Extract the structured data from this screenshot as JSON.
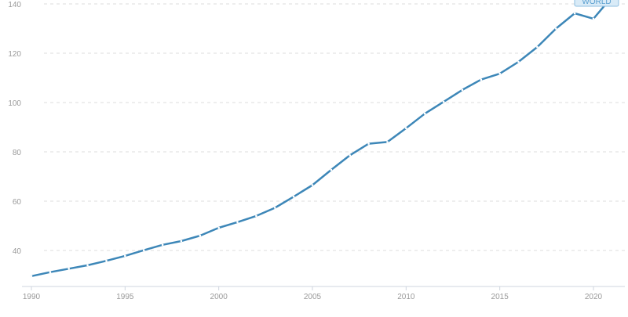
{
  "chart_data": {
    "type": "line",
    "title": "",
    "xlabel": "",
    "ylabel": "",
    "xlim": [
      1990,
      2021
    ],
    "ylim": [
      26,
      140
    ],
    "x_ticks": [
      1990,
      1995,
      2000,
      2005,
      2010,
      2015,
      2020
    ],
    "y_ticks": [
      40,
      60,
      80,
      100,
      120,
      140
    ],
    "grid": "horizontal dashed",
    "legend": "none",
    "series_tag": "WORLD",
    "colors": {
      "line": "#3d87b8",
      "grid": "#dcdcdc",
      "tick_text": "#9a9a9a",
      "tag_fill": "#d9ebf7",
      "tag_text": "#5a9fcf"
    },
    "series": [
      {
        "x": [
          1990,
          1991,
          1992,
          1993,
          1994,
          1995,
          1996,
          1997,
          1998,
          1999,
          2000,
          2001,
          2002,
          2003,
          2004,
          2005,
          2006,
          2007,
          2008,
          2009,
          2010,
          2011,
          2012,
          2013,
          2014,
          2015,
          2016,
          2017,
          2018,
          2019,
          2020,
          2021
        ],
        "values": [
          29.6,
          31.2,
          32.6,
          34.0,
          35.8,
          37.8,
          40.1,
          42.3,
          43.8,
          46.0,
          49.2,
          51.5,
          54.0,
          57.3,
          61.8,
          66.5,
          72.7,
          78.6,
          83.3,
          84.0,
          89.6,
          95.5,
          100.3,
          105.1,
          109.3,
          111.7,
          116.5,
          122.5,
          130.0,
          136.2,
          134.0,
          143.0
        ]
      }
    ]
  }
}
